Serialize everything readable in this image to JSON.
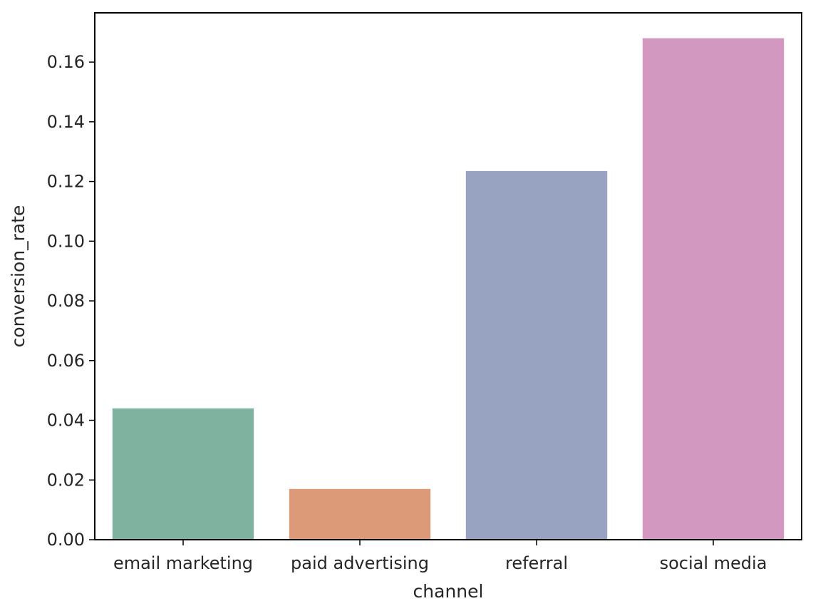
{
  "chart_data": {
    "type": "bar",
    "categories": [
      "email marketing",
      "paid advertising",
      "referral",
      "social media"
    ],
    "values": [
      0.044,
      0.017,
      0.1235,
      0.168
    ],
    "colors": [
      "#7fb39f",
      "#dd9a79",
      "#97a3c0",
      "#d298c0"
    ],
    "xlabel": "channel",
    "ylabel": "conversion_rate",
    "ylim": [
      0,
      0.1765
    ],
    "yticks": [
      0.0,
      0.02,
      0.04,
      0.06,
      0.08,
      0.1,
      0.12,
      0.14,
      0.16
    ],
    "ytick_labels": [
      "0.00",
      "0.02",
      "0.04",
      "0.06",
      "0.08",
      "0.10",
      "0.12",
      "0.14",
      "0.16"
    ],
    "grid": false,
    "legend": "none"
  }
}
